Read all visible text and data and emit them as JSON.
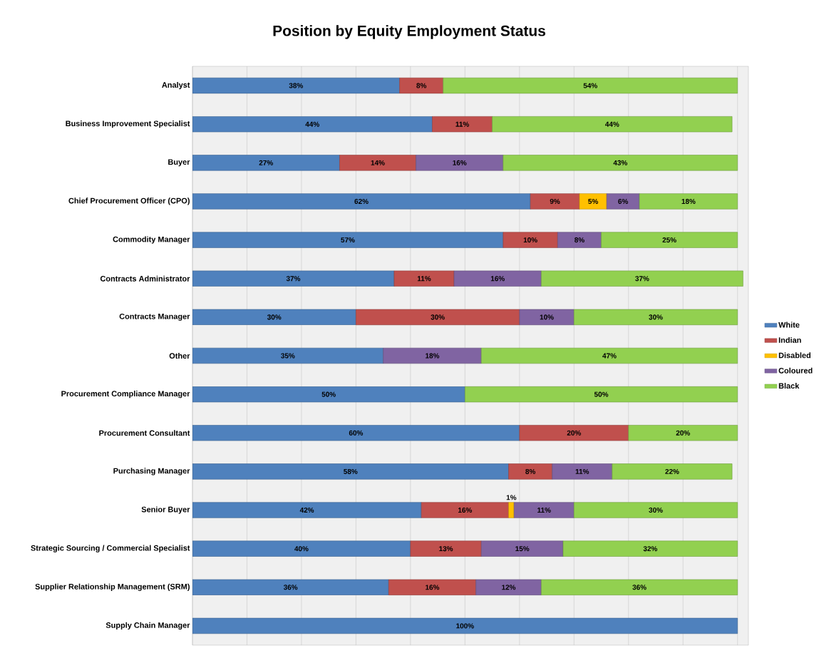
{
  "chart_data": {
    "type": "bar",
    "orientation": "horizontal",
    "stacked": true,
    "title": "Position by Equity Employment Status",
    "categories": [
      "Analyst",
      "Business Improvement Specialist",
      "Buyer",
      "Chief Procurement Officer (CPO)",
      "Commodity Manager",
      "Contracts Administrator",
      "Contracts Manager",
      "Other",
      "Procurement Compliance Manager",
      "Procurement Consultant",
      "Purchasing Manager",
      "Senior Buyer",
      "Strategic Sourcing / Commercial Specialist",
      "Supplier Relationship Management (SRM)",
      "Supply Chain Manager"
    ],
    "series": [
      {
        "name": "White",
        "color": "#4f81bd",
        "values": [
          38,
          44,
          27,
          62,
          57,
          37,
          30,
          35,
          50,
          60,
          58,
          42,
          40,
          36,
          100
        ],
        "value_labels": [
          "38%",
          "44%",
          "27%",
          "62%",
          "57%",
          "37%",
          "30%",
          "35%",
          "50%",
          "60%",
          "58%",
          "42%",
          "40%",
          "36%",
          "100%"
        ]
      },
      {
        "name": "Indian",
        "color": "#c0504d",
        "values": [
          8,
          11,
          14,
          9,
          10,
          11,
          30,
          null,
          null,
          20,
          8,
          16,
          13,
          16,
          null
        ],
        "value_labels": [
          "8%",
          "11%",
          "14%",
          "9%",
          "10%",
          "11%",
          "30%",
          null,
          null,
          "20%",
          "8%",
          "16%",
          "13%",
          "16%",
          null
        ]
      },
      {
        "name": "Disabled",
        "color": "#ffc000",
        "values": [
          null,
          null,
          null,
          5,
          null,
          null,
          null,
          null,
          null,
          null,
          null,
          1,
          null,
          null,
          null
        ],
        "value_labels": [
          null,
          null,
          null,
          "5%",
          null,
          null,
          null,
          null,
          null,
          null,
          null,
          "1%",
          null,
          null,
          null
        ]
      },
      {
        "name": "Coloured",
        "color": "#8064a2",
        "values": [
          null,
          null,
          16,
          6,
          8,
          16,
          10,
          18,
          null,
          null,
          11,
          11,
          15,
          12,
          null
        ],
        "value_labels": [
          null,
          null,
          "16%",
          "6%",
          "8%",
          "16%",
          "10%",
          "18%",
          null,
          null,
          "11%",
          "11%",
          "15%",
          "12%",
          null
        ]
      },
      {
        "name": "Black",
        "color": "#92d050",
        "values": [
          54,
          44,
          43,
          18,
          25,
          37,
          30,
          47,
          50,
          20,
          22,
          30,
          32,
          36,
          null
        ],
        "value_labels": [
          "54%",
          "44%",
          "43%",
          "18%",
          "25%",
          "37%",
          "30%",
          "47%",
          "50%",
          "20%",
          "22%",
          "30%",
          "32%",
          "36%",
          null
        ]
      }
    ],
    "xlim": [
      0,
      102
    ],
    "xticks": [
      {
        "value": 0,
        "label": null
      },
      {
        "value": 10,
        "label": null
      },
      {
        "value": 20,
        "label": null
      },
      {
        "value": 30,
        "label": null
      },
      {
        "value": 40,
        "label": null
      },
      {
        "value": 50,
        "label": null
      },
      {
        "value": 60,
        "label": null
      },
      {
        "value": 70,
        "label": null
      },
      {
        "value": 80,
        "label": null
      },
      {
        "value": 90,
        "label": null
      },
      {
        "value": 100,
        "label": null
      }
    ],
    "grid": "x",
    "legend": "right",
    "tick_labels": "y"
  }
}
